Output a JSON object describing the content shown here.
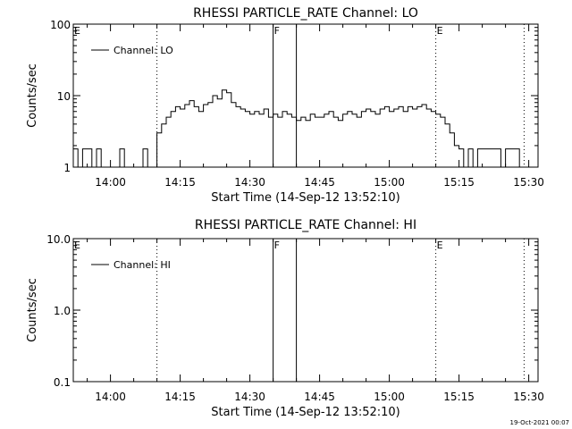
{
  "footer": {
    "timestamp": "19-Oct-2021 00:07"
  },
  "chart_data": [
    {
      "type": "line",
      "title": "RHESSI PARTICLE_RATE Channel: LO",
      "xlabel": "Start Time (14-Sep-12 13:52:10)",
      "ylabel": "Counts/sec",
      "y_scale": "log",
      "ylim": [
        1,
        100
      ],
      "y_ticks": [
        {
          "value": 1,
          "label": "1"
        },
        {
          "value": 10,
          "label": "10"
        },
        {
          "value": 100,
          "label": "100"
        }
      ],
      "xlim": [
        "13:52",
        "15:32"
      ],
      "x_ticks": [
        "14:00",
        "14:15",
        "14:30",
        "14:45",
        "15:00",
        "15:15",
        "15:30"
      ],
      "legend": {
        "position": "top-left",
        "entries": [
          "Channel: LO"
        ]
      },
      "markers": [
        {
          "time": "14:10",
          "style": "dotted",
          "label": ""
        },
        {
          "time": "14:35",
          "style": "solid",
          "label": "F"
        },
        {
          "time": "14:40",
          "style": "solid",
          "label": ""
        },
        {
          "time": "15:10",
          "style": "dotted",
          "label": "E"
        },
        {
          "time": "15:29",
          "style": "dotted",
          "label": ""
        }
      ],
      "edge_labels": [
        "E"
      ],
      "series": [
        {
          "name": "Channel: LO",
          "x": [
            "13:52",
            "13:53",
            "13:54",
            "13:56",
            "13:57",
            "13:58",
            "14:02",
            "14:03",
            "14:07",
            "14:08",
            "14:10",
            "14:11",
            "14:12",
            "14:13",
            "14:14",
            "14:15",
            "14:16",
            "14:17",
            "14:18",
            "14:19",
            "14:20",
            "14:21",
            "14:22",
            "14:23",
            "14:24",
            "14:25",
            "14:26",
            "14:27",
            "14:28",
            "14:29",
            "14:30",
            "14:31",
            "14:32",
            "14:33",
            "14:34",
            "14:35",
            "14:36",
            "14:37",
            "14:38",
            "14:39",
            "14:40",
            "14:41",
            "14:42",
            "14:43",
            "14:44",
            "14:45",
            "14:46",
            "14:47",
            "14:48",
            "14:49",
            "14:50",
            "14:51",
            "14:52",
            "14:53",
            "14:54",
            "14:55",
            "14:56",
            "14:57",
            "14:58",
            "14:59",
            "15:00",
            "15:01",
            "15:02",
            "15:03",
            "15:04",
            "15:05",
            "15:06",
            "15:07",
            "15:08",
            "15:09",
            "15:10",
            "15:11",
            "15:12",
            "15:13",
            "15:14",
            "15:15",
            "15:16",
            "15:17",
            "15:18",
            "15:19",
            "15:20",
            "15:21",
            "15:22",
            "15:23",
            "15:24",
            "15:25",
            "15:26",
            "15:27",
            "15:28",
            "15:29"
          ],
          "values": [
            1.8,
            1.0,
            1.8,
            1.0,
            1.8,
            1.0,
            1.8,
            1.0,
            1.8,
            1.0,
            3.0,
            4.0,
            5.0,
            6.0,
            7.0,
            6.5,
            7.5,
            8.5,
            7.0,
            6.0,
            7.5,
            8.0,
            10.0,
            9.0,
            12.0,
            11.0,
            8.0,
            7.0,
            6.5,
            6.0,
            5.5,
            6.0,
            5.5,
            6.5,
            5.0,
            5.5,
            5.0,
            6.0,
            5.5,
            5.0,
            4.5,
            5.0,
            4.5,
            5.5,
            5.0,
            5.0,
            5.5,
            6.0,
            5.0,
            4.5,
            5.5,
            6.0,
            5.5,
            5.0,
            6.0,
            6.5,
            6.0,
            5.5,
            6.5,
            7.0,
            6.0,
            6.5,
            7.0,
            6.0,
            7.0,
            6.5,
            7.0,
            7.5,
            6.5,
            6.0,
            5.5,
            5.0,
            4.0,
            3.0,
            2.0,
            1.8,
            1.0,
            1.8,
            1.0,
            1.8,
            1.8,
            1.8,
            1.8,
            1.8,
            1.0,
            1.8,
            1.8,
            1.8,
            1.0,
            1.0
          ]
        }
      ]
    },
    {
      "type": "line",
      "title": "RHESSI PARTICLE_RATE Channel: HI",
      "xlabel": "Start Time (14-Sep-12 13:52:10)",
      "ylabel": "Counts/sec",
      "y_scale": "log",
      "ylim": [
        0.1,
        10
      ],
      "y_ticks": [
        {
          "value": 0.1,
          "label": "0.1"
        },
        {
          "value": 1,
          "label": "1.0"
        },
        {
          "value": 10,
          "label": "10.0"
        }
      ],
      "xlim": [
        "13:52",
        "15:32"
      ],
      "x_ticks": [
        "14:00",
        "14:15",
        "14:30",
        "14:45",
        "15:00",
        "15:15",
        "15:30"
      ],
      "legend": {
        "position": "top-left",
        "entries": [
          "Channel: HI"
        ]
      },
      "markers": [
        {
          "time": "14:10",
          "style": "dotted",
          "label": ""
        },
        {
          "time": "14:35",
          "style": "solid",
          "label": "F"
        },
        {
          "time": "14:40",
          "style": "solid",
          "label": ""
        },
        {
          "time": "15:10",
          "style": "dotted",
          "label": "E"
        },
        {
          "time": "15:29",
          "style": "dotted",
          "label": ""
        }
      ],
      "edge_labels": [
        "E"
      ],
      "series": [
        {
          "name": "Channel: HI",
          "x": [],
          "values": []
        }
      ]
    }
  ]
}
